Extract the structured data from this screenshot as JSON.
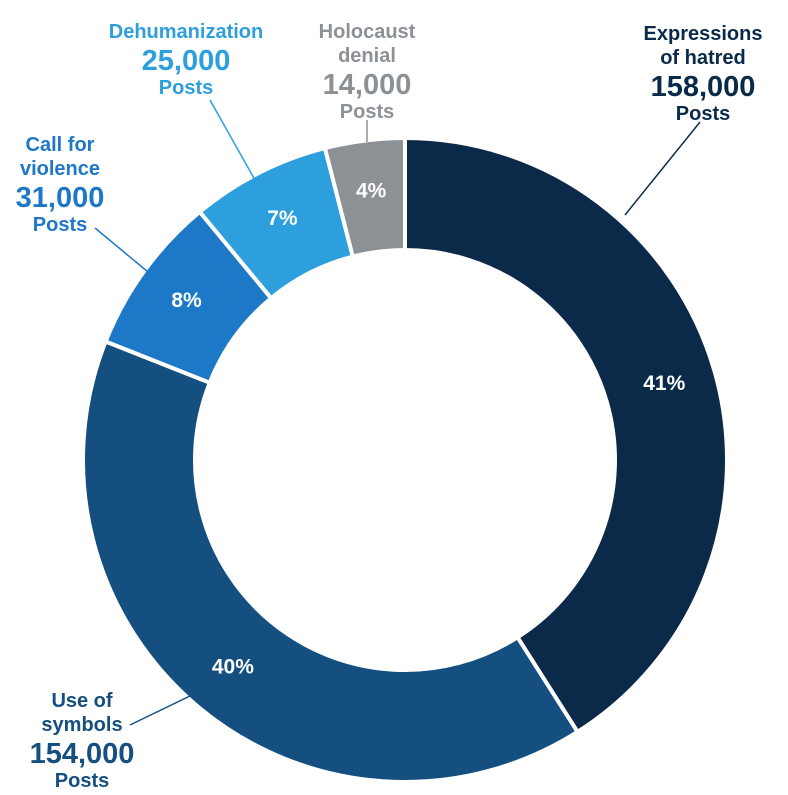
{
  "chart_data": {
    "type": "donut",
    "slices": [
      {
        "category": "Expressions of hatred",
        "name_lines": [
          "Expressions",
          "of hatred"
        ],
        "count": "158,000",
        "unit": "Posts",
        "percent": 41,
        "percent_label": "41%",
        "color": "#0b2a4a",
        "label_color": "#0b2a4a"
      },
      {
        "category": "Use of symbols",
        "name_lines": [
          "Use of",
          "symbols"
        ],
        "count": "154,000",
        "unit": "Posts",
        "percent": 40,
        "percent_label": "40%",
        "color": "#144f7f",
        "label_color": "#144f7f"
      },
      {
        "category": "Call for violence",
        "name_lines": [
          "Call for",
          "violence"
        ],
        "count": "31,000",
        "unit": "Posts",
        "percent": 8,
        "percent_label": "8%",
        "color": "#1e78c8",
        "label_color": "#1e78c8"
      },
      {
        "category": "Dehumanization",
        "name_lines": [
          "Dehumanization"
        ],
        "count": "25,000",
        "unit": "Posts",
        "percent": 7,
        "percent_label": "7%",
        "color": "#2d9fdc",
        "label_color": "#2d9fdc"
      },
      {
        "category": "Holocaust denial",
        "name_lines": [
          "Holocaust",
          "denial"
        ],
        "count": "14,000",
        "unit": "Posts",
        "percent": 4,
        "percent_label": "4%",
        "color": "#8c9196",
        "label_color": "#8c9196"
      }
    ],
    "start_angle_deg": 0,
    "direction": "clockwise"
  }
}
